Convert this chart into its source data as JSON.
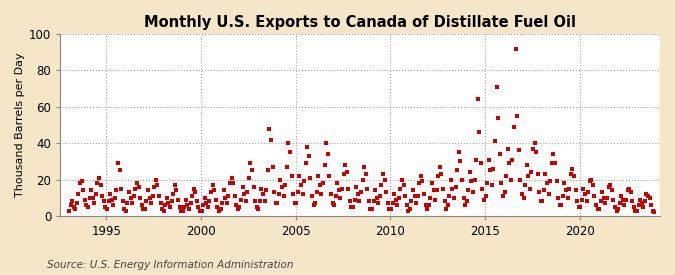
{
  "title": "Monthly U.S. Exports to Canada of Distillate Fuel Oil",
  "ylabel": "Thousand Barrels per Day",
  "source": "Source: U.S. Energy Information Administration",
  "fig_bg_color": "#f5e6c8",
  "plot_bg_color": "#ffffff",
  "marker_color": "#cc0000",
  "ylim": [
    0,
    100
  ],
  "yticks": [
    0,
    20,
    40,
    60,
    80,
    100
  ],
  "start_year": 1993,
  "grid_color": "#aaaaaa",
  "grid_style": ":",
  "xtick_years": [
    1995,
    2000,
    2005,
    2010,
    2015,
    2020
  ],
  "data": [
    3,
    6,
    8,
    5,
    4,
    7,
    12,
    18,
    19,
    14,
    9,
    6,
    5,
    10,
    14,
    10,
    7,
    12,
    18,
    21,
    17,
    11,
    8,
    5,
    4,
    8,
    12,
    9,
    6,
    10,
    14,
    29,
    25,
    15,
    8,
    4,
    3,
    7,
    13,
    10,
    7,
    11,
    15,
    18,
    16,
    10,
    6,
    4,
    4,
    8,
    14,
    10,
    7,
    11,
    16,
    20,
    17,
    11,
    7,
    4,
    3,
    6,
    10,
    7,
    5,
    8,
    12,
    17,
    14,
    9,
    5,
    3,
    3,
    5,
    9,
    6,
    4,
    7,
    11,
    15,
    13,
    8,
    5,
    3,
    3,
    6,
    10,
    7,
    5,
    8,
    13,
    17,
    14,
    9,
    5,
    3,
    4,
    7,
    14,
    10,
    7,
    11,
    18,
    21,
    18,
    11,
    6,
    4,
    5,
    9,
    16,
    12,
    8,
    13,
    21,
    29,
    25,
    16,
    8,
    5,
    4,
    8,
    15,
    12,
    8,
    14,
    25,
    48,
    42,
    27,
    13,
    7,
    7,
    12,
    20,
    16,
    11,
    17,
    27,
    40,
    35,
    22,
    12,
    7,
    7,
    13,
    22,
    17,
    12,
    19,
    29,
    38,
    33,
    21,
    11,
    6,
    7,
    13,
    22,
    17,
    12,
    18,
    28,
    40,
    34,
    22,
    12,
    7,
    6,
    11,
    18,
    14,
    10,
    15,
    23,
    28,
    24,
    15,
    8,
    5,
    5,
    9,
    16,
    12,
    8,
    13,
    20,
    27,
    23,
    15,
    8,
    4,
    4,
    8,
    14,
    10,
    7,
    11,
    17,
    23,
    20,
    13,
    7,
    4,
    4,
    7,
    12,
    9,
    6,
    10,
    15,
    20,
    17,
    11,
    6,
    3,
    4,
    8,
    14,
    11,
    7,
    11,
    18,
    22,
    19,
    12,
    6,
    4,
    6,
    10,
    18,
    14,
    9,
    14,
    22,
    27,
    23,
    15,
    8,
    4,
    6,
    11,
    20,
    15,
    10,
    16,
    25,
    35,
    30,
    20,
    10,
    6,
    8,
    14,
    24,
    19,
    13,
    20,
    31,
    64,
    46,
    29,
    15,
    9,
    11,
    18,
    31,
    25,
    17,
    26,
    41,
    71,
    54,
    34,
    18,
    11,
    13,
    22,
    37,
    29,
    20,
    31,
    49,
    92,
    55,
    36,
    20,
    12,
    10,
    17,
    28,
    22,
    15,
    24,
    37,
    40,
    35,
    23,
    13,
    8,
    8,
    14,
    23,
    18,
    12,
    19,
    29,
    34,
    29,
    19,
    10,
    6,
    6,
    11,
    18,
    14,
    10,
    15,
    23,
    26,
    22,
    14,
    8,
    5,
    5,
    9,
    15,
    12,
    8,
    13,
    19,
    20,
    17,
    11,
    6,
    4,
    4,
    8,
    13,
    10,
    7,
    10,
    16,
    17,
    14,
    9,
    5,
    3,
    4,
    7,
    11,
    9,
    6,
    9,
    14,
    15,
    13,
    8,
    5,
    3,
    3,
    6,
    9,
    7,
    5,
    8,
    12,
    11,
    10,
    6,
    3,
    2
  ]
}
